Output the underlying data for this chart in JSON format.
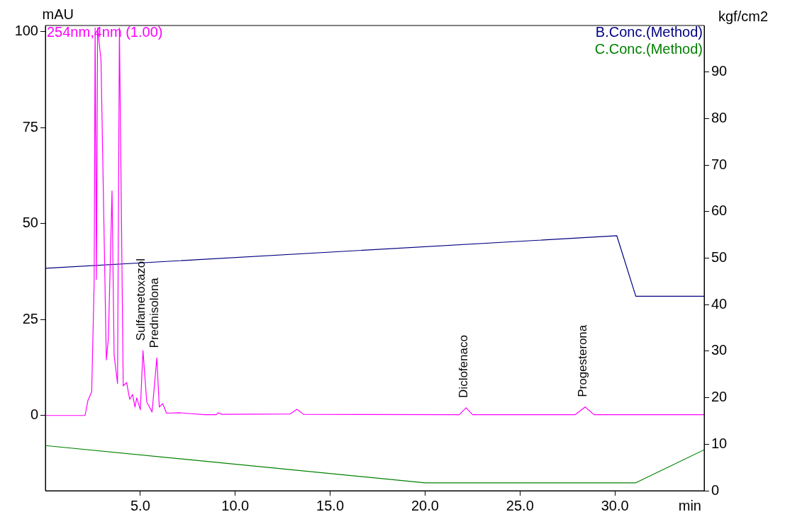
{
  "chart_data": {
    "type": "line",
    "ylabel": "mAU",
    "y2label": "kgf/cm2",
    "xlabel": "min",
    "xlim": [
      0,
      34.7
    ],
    "xticks": [
      {
        "value": 5,
        "label": "5.0"
      },
      {
        "value": 10,
        "label": "10.0"
      },
      {
        "value": 15,
        "label": "15.0"
      },
      {
        "value": 20,
        "label": "20.0"
      },
      {
        "value": 25,
        "label": "25.0"
      },
      {
        "value": 30,
        "label": "30.0"
      }
    ],
    "ylim": [
      -19.6,
      101.6
    ],
    "yticks": [
      0,
      25,
      50,
      75,
      100
    ],
    "y2lim": [
      0,
      100
    ],
    "y2ticks": [
      0,
      10,
      20,
      30,
      40,
      50,
      60,
      70,
      80,
      90
    ],
    "grid": false,
    "marker": "none",
    "line_style": "solid",
    "series": [
      {
        "name": "254nm,4nm (1.00)",
        "color": "#ff00ff",
        "x": [
          0,
          2.09,
          2.24,
          2.44,
          2.57,
          2.62,
          2.69,
          2.75,
          2.93,
          3.04,
          3.21,
          3.32,
          3.51,
          3.62,
          3.8,
          3.9,
          4.1,
          4.28,
          4.44,
          4.59,
          4.72,
          4.81,
          5.0,
          5.14,
          5.34,
          5.62,
          5.87,
          6.0,
          6.18,
          6.38,
          7.07,
          8.4,
          9.0,
          9.1,
          9.3,
          12.9,
          13.25,
          13.6,
          21.8,
          22.16,
          22.5,
          27.9,
          28.43,
          28.9,
          34.7
        ],
        "values": [
          0,
          0,
          3.9,
          6.2,
          35,
          101,
          35.4,
          101,
          92.6,
          62,
          14.5,
          20.2,
          58.5,
          15.8,
          8.3,
          101,
          7.7,
          8.6,
          4.2,
          5.5,
          2.2,
          4.6,
          1.5,
          16.9,
          3.5,
          0.9,
          15.0,
          2.2,
          3.1,
          0.6,
          0.7,
          0.2,
          0.2,
          0.7,
          0.3,
          0.4,
          1.6,
          0.3,
          0.2,
          2.0,
          0.2,
          0.2,
          2.2,
          0.2,
          0.2
        ]
      },
      {
        "name": "B.Conc.(Method)",
        "color": "#000080",
        "axis": "y2",
        "x": [
          0,
          30.1,
          31.1,
          34.7
        ],
        "values": [
          47.8,
          54.8,
          41.8,
          41.8
        ]
      },
      {
        "name": "C.Conc.(Method)",
        "color": "#008000",
        "axis": "y2",
        "x": [
          0,
          20.0,
          31.1,
          34.7
        ],
        "values": [
          9.7,
          1.7,
          1.7,
          8.8
        ]
      }
    ],
    "annotations": [
      {
        "text": "Sulfametoxazol",
        "x": 5.14,
        "y": 16.9
      },
      {
        "text": "Prednisolona",
        "x": 5.87,
        "y": 15.0
      },
      {
        "text": "Diclofenaco",
        "x": 22.16,
        "y": 2.0
      },
      {
        "text": "Progesterona",
        "x": 28.43,
        "y": 2.2
      }
    ]
  }
}
